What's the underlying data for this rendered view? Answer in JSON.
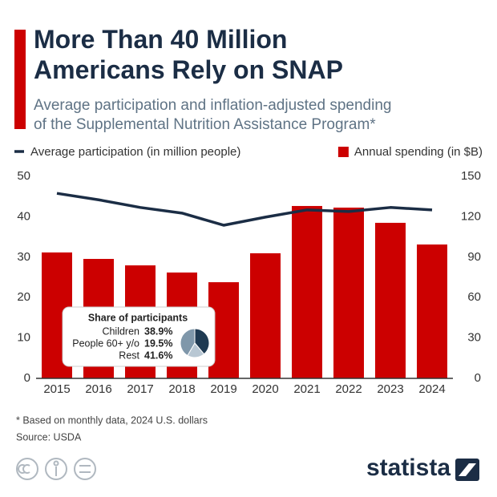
{
  "chart_data": [
    {
      "type": "combo",
      "title": "More Than 40 Million\nAmericans Rely on SNAP",
      "subtitle": "Average participation and inflation-adjusted spending\nof the Supplemental Nutrition Assistance Program*",
      "categories": [
        "2015",
        "2016",
        "2017",
        "2018",
        "2019",
        "2020",
        "2021",
        "2022",
        "2023",
        "2024"
      ],
      "series": [
        {
          "name": "Annual spending (in $B)",
          "type": "bar",
          "axis": "y2",
          "color": "#cc0000",
          "values": [
            93.5,
            88.7,
            83.9,
            78.6,
            71.4,
            92.9,
            128,
            126.8,
            115.5,
            99.4
          ]
        },
        {
          "name": "Average participation (in million people)",
          "type": "line",
          "color": "#1b2d45",
          "values": [
            45.8,
            44.2,
            42.3,
            40.9,
            37.9,
            39.9,
            41.7,
            41.3,
            42.3,
            41.7
          ]
        }
      ],
      "ylim": [
        0,
        50
      ],
      "yticks": [
        0,
        10,
        20,
        30,
        40,
        50
      ],
      "y2lim": [
        0,
        150
      ],
      "y2ticks": [
        0,
        30,
        60,
        90,
        120,
        150
      ]
    },
    {
      "type": "pie",
      "title": "Share of participants",
      "categories": [
        "Children",
        "People 60+ y/o",
        "Rest"
      ],
      "values": [
        38.9,
        19.5,
        41.6
      ],
      "value_labels": [
        "38.9%",
        "19.5%",
        "41.6%"
      ],
      "colors": [
        "#1f3a52",
        "#b8c7d3",
        "#7f97aa"
      ]
    }
  ],
  "notes": {
    "footnote": "* Based on monthly data, 2024 U.S. dollars",
    "source": "Source: USDA"
  },
  "brand": "statista"
}
